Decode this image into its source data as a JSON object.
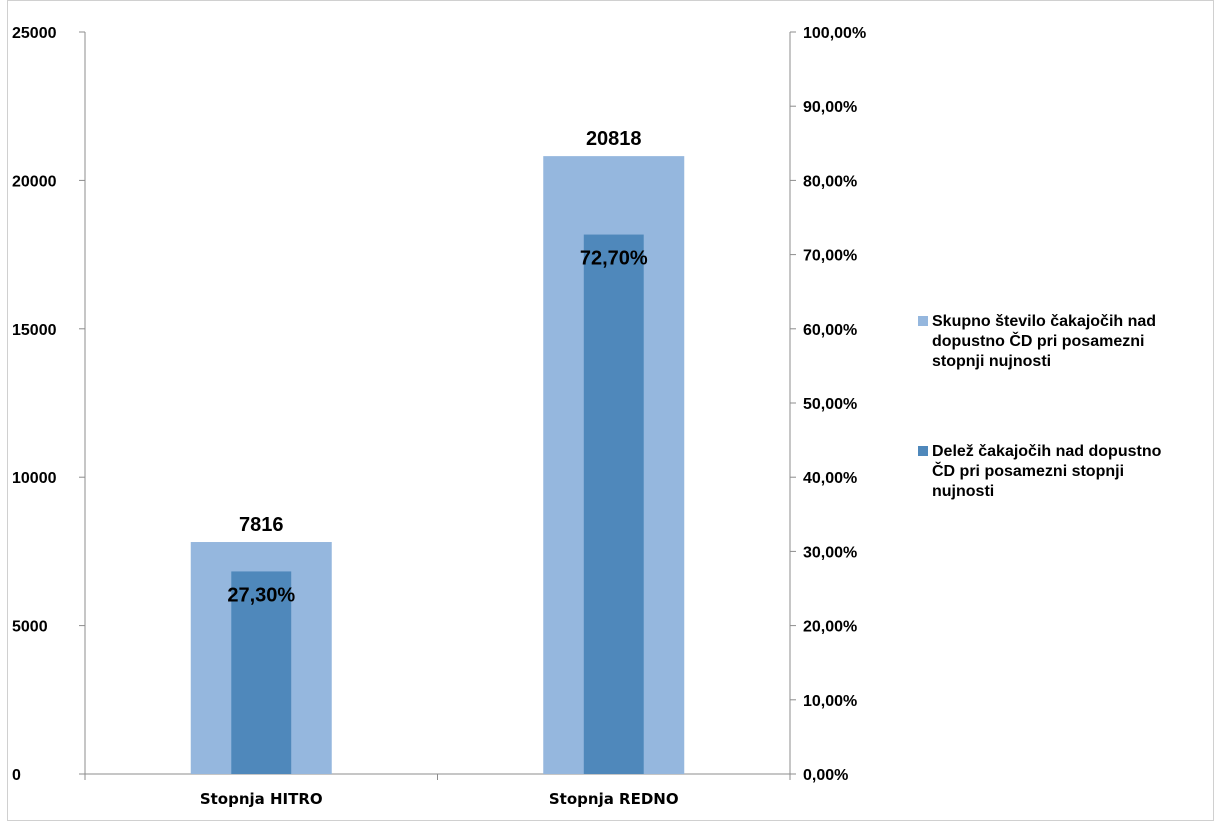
{
  "chart_data": {
    "type": "bar",
    "title": "",
    "categories": [
      "Stopnja HITRO",
      "Stopnja REDNO"
    ],
    "series": [
      {
        "name": "Skupno število čakajočih nad dopustno ČD pri posamezni stopnji nujnosti",
        "axis": "left",
        "values": [
          7816,
          20818
        ],
        "value_labels": [
          "7816",
          "20818"
        ],
        "color": "#95b7de"
      },
      {
        "name": "Delež čakajočih nad dopustno ČD pri posamezni stopnji nujnosti",
        "axis": "right",
        "values": [
          27.3,
          72.7
        ],
        "value_labels": [
          "27,30%",
          "72,70%"
        ],
        "color": "#4f88bb"
      }
    ],
    "y_left": {
      "range": [
        0,
        25000
      ],
      "ticks": [
        0,
        5000,
        10000,
        15000,
        20000,
        25000
      ],
      "tick_labels": [
        "0",
        "5000",
        "10000",
        "15000",
        "20000",
        "25000"
      ]
    },
    "y_right": {
      "range": [
        0,
        100
      ],
      "ticks": [
        0,
        10,
        20,
        30,
        40,
        50,
        60,
        70,
        80,
        90,
        100
      ],
      "tick_labels": [
        "0,00%",
        "10,00%",
        "20,00%",
        "30,00%",
        "40,00%",
        "50,00%",
        "60,00%",
        "70,00%",
        "80,00%",
        "90,00%",
        "100,00%"
      ]
    },
    "legend": {
      "position": "right",
      "lines": [
        [
          "Skupno število čakajočih nad",
          "dopustno ČD pri posamezni",
          "stopnji nujnosti"
        ],
        [
          "Delež čakajočih nad dopustno",
          "ČD pri posamezni stopnji",
          "nujnosti"
        ]
      ]
    },
    "grid": false
  }
}
